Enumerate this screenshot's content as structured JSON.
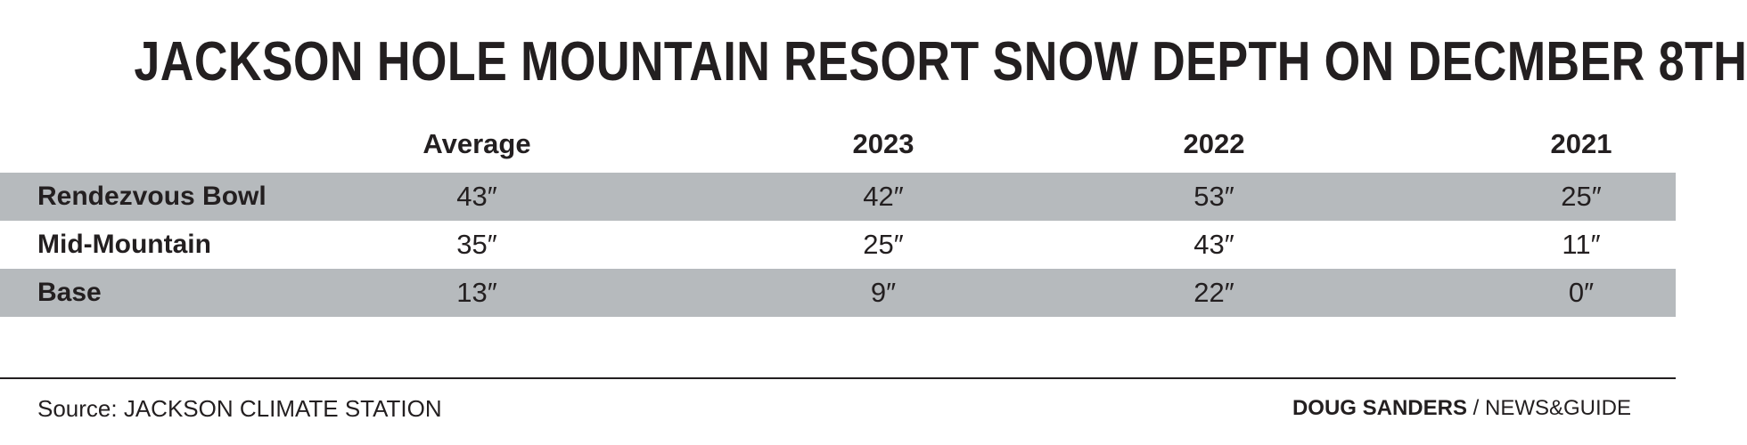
{
  "chart_data": {
    "type": "table",
    "title": "JACKSON HOLE MOUNTAIN RESORT SNOW DEPTH ON DECMBER 8TH",
    "columns": [
      "Average",
      "2023",
      "2022",
      "2021"
    ],
    "rows": [
      {
        "label": "Rendezvous Bowl",
        "values": [
          "43″",
          "42″",
          "53″",
          "25″"
        ],
        "shaded": true
      },
      {
        "label": "Mid-Mountain",
        "values": [
          "35″",
          "25″",
          "43″",
          "11″"
        ],
        "shaded": false
      },
      {
        "label": "Base",
        "values": [
          "13″",
          "9″",
          "22″",
          "0″"
        ],
        "shaded": true
      }
    ],
    "unit": "inches"
  },
  "footer": {
    "source": "Source: JACKSON CLIMATE STATION",
    "author": "DOUG SANDERS",
    "separator": " / ",
    "publication": "NEWS&GUIDE"
  },
  "colors": {
    "text": "#231f20",
    "shaded_row": "#b6babd",
    "background": "#ffffff"
  }
}
